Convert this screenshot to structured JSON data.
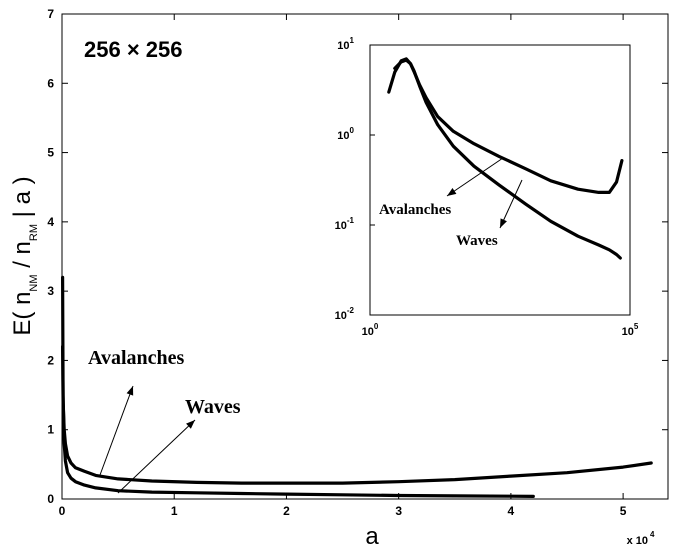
{
  "chart_data": [
    {
      "type": "line",
      "panel": "main",
      "xlabel": "a",
      "x_multiplier": "x 10",
      "x_multiplier_exp": "4",
      "ylabel": {
        "prefix": "E( n",
        "sub1": "NM",
        "mid": " / n",
        "sub2": "RM",
        "suffix": "  | a )"
      },
      "annotation_size": "256 × 256",
      "xlim": [
        0,
        5.4
      ],
      "ylim": [
        0,
        7
      ],
      "xticks": [
        0,
        1,
        2,
        3,
        4,
        5
      ],
      "yticks": [
        0,
        1,
        2,
        3,
        4,
        5,
        6,
        7
      ],
      "grid": false,
      "series": [
        {
          "name": "Avalanches",
          "x": [
            0.005,
            0.01,
            0.02,
            0.03,
            0.05,
            0.08,
            0.12,
            0.2,
            0.3,
            0.5,
            0.8,
            1.2,
            1.6,
            2.0,
            2.5,
            3.0,
            3.5,
            4.0,
            4.5,
            5.0,
            5.25
          ],
          "y": [
            2.2,
            1.4,
            1.0,
            0.8,
            0.62,
            0.52,
            0.45,
            0.4,
            0.34,
            0.29,
            0.26,
            0.24,
            0.23,
            0.23,
            0.23,
            0.25,
            0.28,
            0.33,
            0.38,
            0.46,
            0.52
          ]
        },
        {
          "name": "Waves",
          "x": [
            0.005,
            0.01,
            0.02,
            0.03,
            0.05,
            0.08,
            0.12,
            0.2,
            0.3,
            0.5,
            0.8,
            1.2,
            1.6,
            2.0,
            2.5,
            3.0,
            3.5,
            4.0,
            4.2
          ],
          "y": [
            3.2,
            1.5,
            0.8,
            0.55,
            0.38,
            0.3,
            0.25,
            0.2,
            0.16,
            0.12,
            0.1,
            0.09,
            0.08,
            0.07,
            0.06,
            0.05,
            0.045,
            0.04,
            0.038
          ]
        }
      ],
      "annotations": [
        {
          "text": "Avalanches",
          "points_to": "Avalanches"
        },
        {
          "text": "Waves",
          "points_to": "Waves"
        }
      ]
    },
    {
      "type": "line",
      "panel": "inset",
      "xscale": "log",
      "yscale": "log",
      "xlim": [
        1,
        100000
      ],
      "ylim": [
        0.01,
        10
      ],
      "xticks": [
        {
          "base": "10",
          "exp": "0"
        },
        {
          "base": "10",
          "exp": "5"
        }
      ],
      "yticks": [
        {
          "base": "10",
          "exp": "-2"
        },
        {
          "base": "10",
          "exp": "-1"
        },
        {
          "base": "10",
          "exp": "0"
        },
        {
          "base": "10",
          "exp": "1"
        }
      ],
      "grid": false,
      "series": [
        {
          "name": "Avalanches",
          "x": [
            2.3,
            3,
            4,
            5,
            6,
            7,
            9,
            12,
            20,
            40,
            100,
            300,
            1000,
            3000,
            10000,
            25000,
            40000,
            55000,
            70000
          ],
          "y": [
            3.0,
            5.0,
            6.7,
            7.0,
            6.2,
            5.1,
            3.6,
            2.6,
            1.6,
            1.1,
            0.8,
            0.58,
            0.42,
            0.31,
            0.25,
            0.23,
            0.23,
            0.3,
            0.52
          ]
        },
        {
          "name": "Waves",
          "x": [
            3,
            4,
            5,
            6,
            7,
            9,
            12,
            20,
            40,
            100,
            300,
            1000,
            3000,
            10000,
            25000,
            40000,
            55000,
            65000
          ],
          "y": [
            5.5,
            6.5,
            6.8,
            6.2,
            5.2,
            3.5,
            2.3,
            1.3,
            0.75,
            0.45,
            0.28,
            0.17,
            0.11,
            0.075,
            0.06,
            0.053,
            0.047,
            0.043
          ]
        }
      ],
      "annotations": [
        {
          "text": "Avalanches",
          "points_to": "Avalanches"
        },
        {
          "text": "Waves",
          "points_to": "Waves"
        }
      ]
    }
  ]
}
